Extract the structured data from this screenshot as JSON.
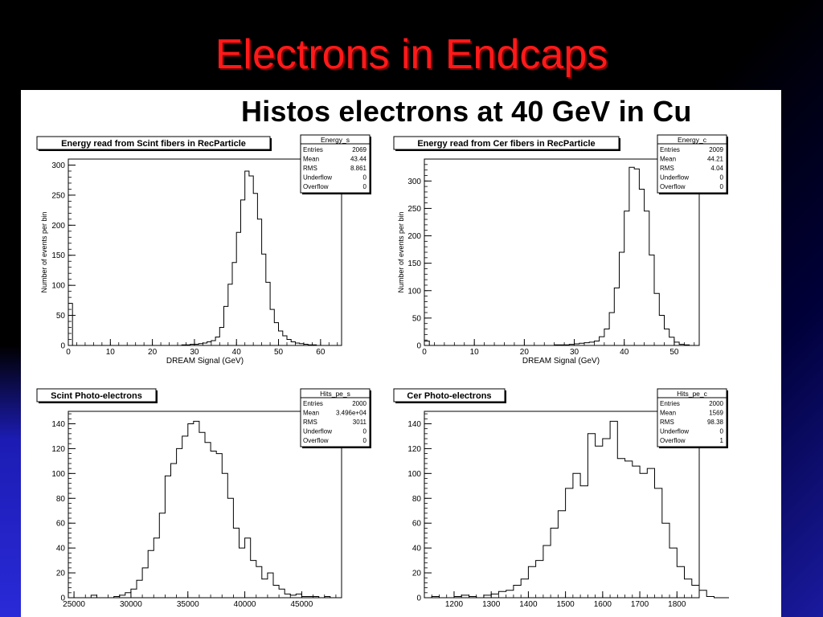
{
  "slide": {
    "title": "Electrons in Endcaps",
    "subtitle": "Histos   electrons at 40 GeV in Cu"
  },
  "colors": {
    "title": "#ff1a1a",
    "panel": "#ffffff",
    "line": "#000000"
  },
  "chart_data": [
    {
      "type": "histogram",
      "title": "Energy read from Scint fibers in RecParticle",
      "xlabel": "DREAM Signal (GeV)",
      "ylabel": "Number of events per bin",
      "xlim": [
        0,
        65
      ],
      "ylim": [
        0,
        310
      ],
      "xticks": [
        0,
        10,
        20,
        30,
        40,
        50,
        60
      ],
      "yticks": [
        0,
        50,
        100,
        150,
        200,
        250,
        300
      ],
      "bin_start": 0,
      "bin_width": 1,
      "values": [
        70,
        0,
        0,
        0,
        0,
        0,
        0,
        0,
        0,
        0,
        0,
        0,
        0,
        0,
        0,
        0,
        0,
        0,
        0,
        0,
        0,
        0,
        0,
        0,
        0,
        0,
        0,
        1,
        1,
        2,
        2,
        3,
        4,
        6,
        8,
        14,
        30,
        65,
        102,
        138,
        188,
        242,
        290,
        282,
        253,
        210,
        152,
        105,
        60,
        38,
        24,
        16,
        10,
        6,
        4,
        3,
        2,
        1,
        1,
        0,
        0,
        0,
        0,
        0,
        0
      ],
      "stats": {
        "name": "Energy_s",
        "rows": [
          [
            "Entries",
            "2069"
          ],
          [
            "Mean",
            "43.44"
          ],
          [
            "RMS",
            "8.861"
          ],
          [
            "Underflow",
            "0"
          ],
          [
            "Overflow",
            "0"
          ]
        ]
      }
    },
    {
      "type": "histogram",
      "title": "Energy read from Cer fibers in RecParticle",
      "xlabel": "DREAM Signal (GeV)",
      "ylabel": "Number of events per bin",
      "xlim": [
        0,
        55
      ],
      "ylim": [
        0,
        340
      ],
      "xticks": [
        0,
        10,
        20,
        30,
        40,
        50
      ],
      "yticks": [
        0,
        50,
        100,
        150,
        200,
        250,
        300
      ],
      "bin_start": 0,
      "bin_width": 1,
      "values": [
        8,
        0,
        0,
        0,
        0,
        0,
        0,
        0,
        0,
        0,
        0,
        0,
        0,
        0,
        0,
        0,
        0,
        0,
        0,
        0,
        0,
        0,
        0,
        0,
        0,
        0,
        1,
        1,
        1,
        2,
        3,
        4,
        5,
        6,
        8,
        16,
        30,
        60,
        105,
        170,
        245,
        325,
        322,
        285,
        245,
        165,
        95,
        55,
        30,
        15,
        6,
        2,
        1,
        0,
        0
      ],
      "stats": {
        "name": "Energy_c",
        "rows": [
          [
            "Entries",
            "2009"
          ],
          [
            "Mean",
            "44.21"
          ],
          [
            "RMS",
            "4.04"
          ],
          [
            "Underflow",
            "0"
          ],
          [
            "Overflow",
            "0"
          ]
        ]
      }
    },
    {
      "type": "histogram",
      "title": "Scint Photo-electrons",
      "xlabel": "",
      "ylabel": "",
      "xlim": [
        24500,
        48500
      ],
      "ylim": [
        0,
        150
      ],
      "xticks": [
        25000,
        30000,
        35000,
        40000,
        45000
      ],
      "yticks": [
        0,
        20,
        40,
        60,
        80,
        100,
        120,
        140
      ],
      "bin_start": 24500,
      "bin_width": 500,
      "values": [
        0,
        0,
        0,
        0,
        2,
        0,
        0,
        0,
        1,
        2,
        4,
        7,
        14,
        24,
        38,
        48,
        68,
        98,
        108,
        120,
        130,
        140,
        142,
        133,
        125,
        118,
        116,
        100,
        80,
        56,
        40,
        48,
        30,
        25,
        15,
        20,
        10,
        7,
        3,
        2,
        3,
        1,
        1,
        1,
        0,
        1,
        0,
        0
      ],
      "stats": {
        "name": "Hits_pe_s",
        "rows": [
          [
            "Entries",
            "2000"
          ],
          [
            "Mean",
            "3.496e+04"
          ],
          [
            "RMS",
            "3011"
          ],
          [
            "Underflow",
            "0"
          ],
          [
            "Overflow",
            "0"
          ]
        ]
      }
    },
    {
      "type": "histogram",
      "title": "Cer Photo-electrons",
      "xlabel": "",
      "ylabel": "",
      "xlim": [
        1120,
        1860
      ],
      "ylim": [
        0,
        150
      ],
      "xticks": [
        1200,
        1300,
        1400,
        1500,
        1600,
        1700,
        1800
      ],
      "yticks": [
        0,
        20,
        40,
        60,
        80,
        100,
        120,
        140
      ],
      "bin_start": 1120,
      "bin_width": 20,
      "values": [
        0,
        1,
        0,
        0,
        1,
        2,
        1,
        0,
        2,
        3,
        5,
        6,
        10,
        15,
        25,
        30,
        42,
        56,
        70,
        88,
        100,
        90,
        132,
        122,
        128,
        142,
        112,
        110,
        106,
        100,
        104,
        88,
        60,
        40,
        25,
        15,
        10,
        6,
        1,
        0,
        0
      ],
      "stats": {
        "name": "Hits_pe_c",
        "rows": [
          [
            "Entries",
            "2000"
          ],
          [
            "Mean",
            "1569"
          ],
          [
            "RMS",
            "98.38"
          ],
          [
            "Underflow",
            "0"
          ],
          [
            "Overflow",
            "1"
          ]
        ]
      }
    }
  ]
}
